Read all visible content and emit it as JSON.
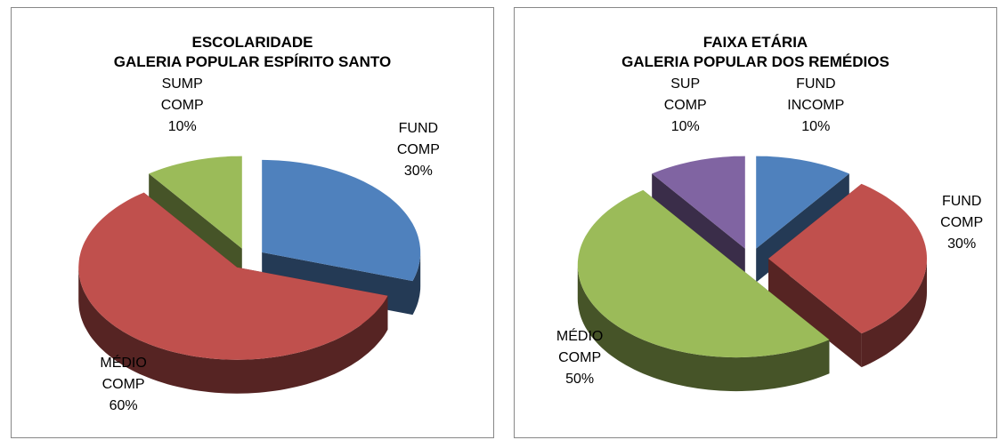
{
  "chart_data": [
    {
      "type": "pie",
      "title": "ESCOLARIDADE",
      "subtitle": "GALERIA POPULAR ESPÍRITO SANTO",
      "categories": [
        "FUND COMP",
        "MÉDIO COMP",
        "SUMP COMP"
      ],
      "values": [
        30,
        60,
        10
      ],
      "value_labels": [
        "30%",
        "60%",
        "10%"
      ],
      "colors": [
        "#4f81bd",
        "#c0504d",
        "#9bbb59"
      ]
    },
    {
      "type": "pie",
      "title": "FAIXA ETÁRIA",
      "subtitle": "GALERIA POPULAR DOS REMÉDIOS",
      "categories": [
        "FUND INCOMP",
        "FUND COMP",
        "MÉDIO COMP",
        "SUP COMP"
      ],
      "values": [
        10,
        30,
        50,
        10
      ],
      "value_labels": [
        "10%",
        "30%",
        "50%",
        "10%"
      ],
      "colors": [
        "#4f81bd",
        "#c0504d",
        "#9bbb59",
        "#8064a2"
      ]
    }
  ]
}
